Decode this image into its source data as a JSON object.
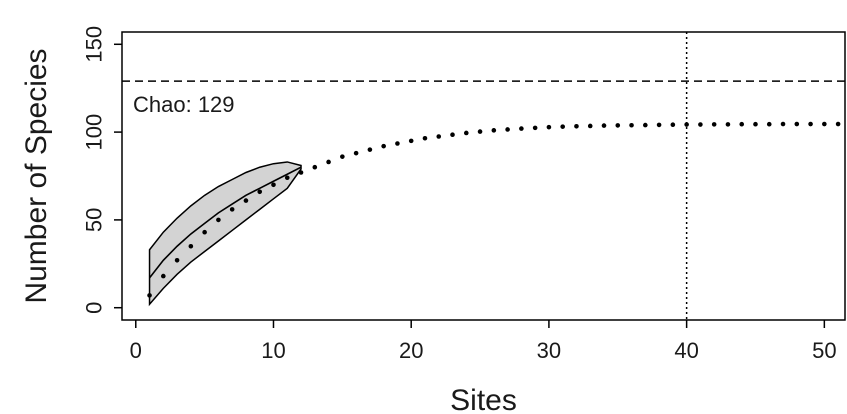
{
  "chart_data": {
    "type": "line",
    "xlabel": "Sites",
    "ylabel": "Number of Species",
    "xlim": [
      -1,
      51.5
    ],
    "ylim": [
      -7,
      157
    ],
    "x_ticks": [
      0,
      10,
      20,
      30,
      40,
      50
    ],
    "y_ticks": [
      0,
      50,
      100,
      150
    ],
    "grid": false,
    "annotation": {
      "label": "Chao: 129",
      "value": 129
    },
    "reference_line_x": 40,
    "series": [
      {
        "style": "solid",
        "x": [
          1,
          2,
          3,
          4,
          5,
          6,
          7,
          8,
          9,
          10,
          11,
          12
        ],
        "y": [
          17,
          27,
          35,
          42,
          48,
          54,
          59,
          64,
          68,
          72,
          76,
          80
        ]
      },
      {
        "style": "dotted",
        "x": [
          1,
          2,
          3,
          4,
          5,
          6,
          7,
          8,
          9,
          10,
          11,
          12,
          13,
          14,
          15,
          16,
          17,
          18,
          19,
          20,
          21,
          22,
          23,
          24,
          25,
          26,
          27,
          28,
          29,
          30,
          31,
          32,
          33,
          34,
          35,
          36,
          37,
          38,
          39,
          40,
          41,
          42,
          43,
          44,
          45,
          46,
          47,
          48,
          49,
          50,
          51
        ],
        "y": [
          7,
          18,
          27,
          35,
          43,
          50,
          56,
          61,
          66,
          70,
          74,
          77,
          80,
          83,
          86,
          88,
          90,
          92,
          93.5,
          95,
          96.5,
          97.5,
          98.5,
          99.5,
          100.3,
          101,
          101.5,
          102,
          102.4,
          102.8,
          103.1,
          103.3,
          103.5,
          103.7,
          103.8,
          103.9,
          104,
          104.1,
          104.2,
          104.3,
          104.3,
          104.4,
          104.4,
          104.5,
          104.5,
          104.5,
          104.6,
          104.6,
          104.6,
          104.6,
          104.6
        ]
      }
    ],
    "confidence_band": {
      "x": [
        1,
        2,
        3,
        4,
        5,
        6,
        7,
        8,
        9,
        10,
        11,
        12
      ],
      "upper": [
        33,
        43,
        51,
        58,
        64,
        69,
        73,
        77,
        80,
        82,
        83,
        81
      ],
      "lower": [
        2,
        11,
        19,
        26,
        32,
        38,
        44,
        50,
        56,
        62,
        68,
        79
      ]
    },
    "colors": {
      "band_fill": "#d3d3d3",
      "line": "#000000"
    }
  }
}
